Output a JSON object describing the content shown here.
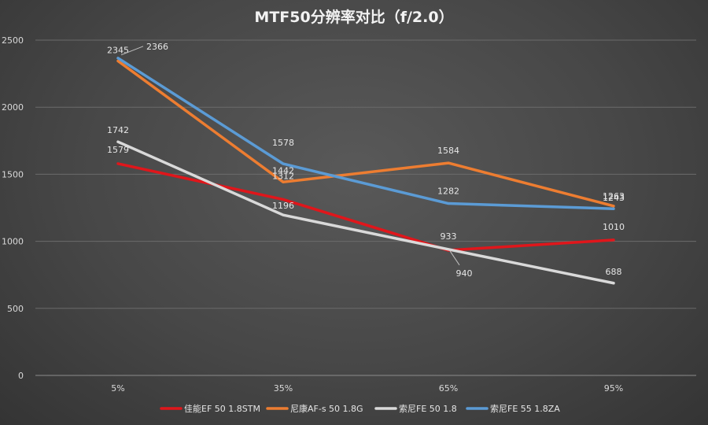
{
  "chart_data": {
    "type": "line",
    "title": "MTF50分辨率对比（f/2.0）",
    "xlabel": "",
    "ylabel": "",
    "categories": [
      "5%",
      "35%",
      "65%",
      "95%"
    ],
    "ylim": [
      0,
      2500
    ],
    "yticks": [
      0,
      500,
      1000,
      1500,
      2000,
      2500
    ],
    "grid": true,
    "legend_position": "bottom",
    "series": [
      {
        "name": "佳能EF 50 1.8STM",
        "values": [
          1579,
          1312,
          933,
          1010
        ],
        "color": "#e0161b",
        "labels": [
          "1579",
          "1312",
          "933",
          "1010"
        ]
      },
      {
        "name": "尼康AF-s 50 1.8G",
        "values": [
          2345,
          1442,
          1584,
          1263
        ],
        "color": "#ed7d31",
        "labels": [
          "2345",
          "1442",
          "1584",
          "1263"
        ]
      },
      {
        "name": "索尼FE 50 1.8",
        "values": [
          1742,
          1196,
          940,
          688
        ],
        "color": "#d9d9d9",
        "labels": [
          "1742",
          "1196",
          "940",
          "688"
        ]
      },
      {
        "name": "索尼FE 55 1.8ZA",
        "values": [
          2366,
          1578,
          1282,
          1243
        ],
        "color": "#5b9bd5",
        "labels": [
          "2366",
          "1578",
          "1282",
          "1243"
        ]
      }
    ]
  }
}
